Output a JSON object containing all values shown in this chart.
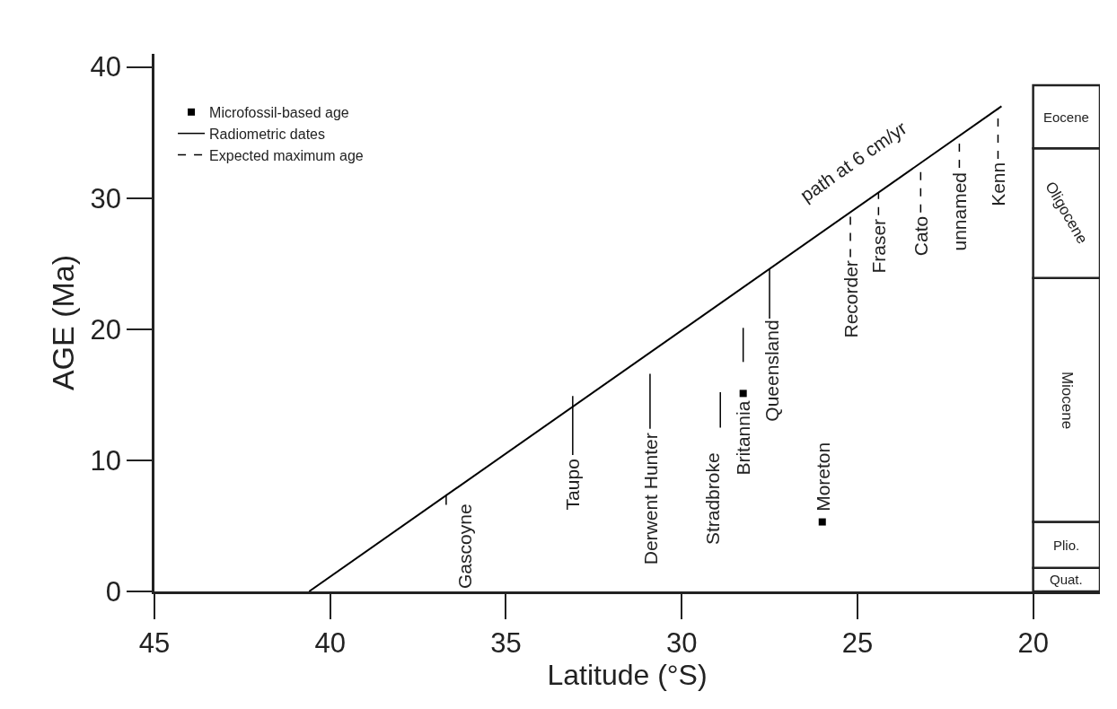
{
  "chart_data": {
    "type": "line",
    "xlabel": "Latitude (°S)",
    "ylabel": "AGE (Ma)",
    "xlim": [
      45,
      18.1
    ],
    "xticks": [
      45,
      40,
      35,
      30,
      25,
      20
    ],
    "ylim": [
      0,
      41
    ],
    "yticks": [
      0,
      10,
      20,
      30,
      40
    ],
    "legend": "top left",
    "stacked": true,
    "series": [
      {
        "type": "scatter",
        "name": "Microfossil-based age",
        "color": "#000000",
        "marker": "square",
        "x": [
          28.25,
          26.0
        ],
        "values": [
          15.1,
          5.3
        ]
      },
      {
        "name": "Radiometric dates",
        "color": "#000000",
        "line_style": "solid",
        "x": [
          36.7,
          36.7,
          null,
          33.1,
          33.1,
          null,
          30.9,
          30.9,
          null,
          28.9,
          28.9,
          null,
          28.25,
          28.25,
          null,
          27.5,
          27.5
        ],
        "values": [
          6.6,
          7.4,
          null,
          10.4,
          14.9,
          null,
          12.4,
          16.6,
          null,
          12.5,
          15.2,
          null,
          17.5,
          20.1,
          null,
          20.8,
          24.6
        ]
      },
      {
        "name": "Expected maximum age",
        "color": "#000000",
        "line_style": "dashed",
        "x": [
          25.2,
          25.2,
          null,
          24.4,
          24.4,
          null,
          23.2,
          23.2,
          null,
          22.1,
          22.1,
          null,
          21.0,
          21.0
        ],
        "values": [
          25.5,
          28.9,
          null,
          28.7,
          30.4,
          null,
          28.9,
          32.6,
          null,
          32.3,
          34.7,
          null,
          33.0,
          36.7
        ]
      },
      {
        "color": "#000000",
        "line_style": "solid",
        "x": [
          40.6,
          20.9
        ],
        "values": [
          0,
          37.0
        ]
      },
      {
        "type": "bar",
        "name": "Quat.",
        "x": [
          19.05
        ],
        "values": [
          1.8
        ]
      },
      {
        "type": "bar",
        "name": "Plio.",
        "x": [
          19.05
        ],
        "values": [
          3.5
        ]
      },
      {
        "type": "bar",
        "name": "Miocene",
        "x": [
          19.05
        ],
        "values": [
          18.6
        ]
      },
      {
        "type": "bar",
        "name": "Oligocene",
        "x": [
          19.05
        ],
        "values": [
          9.9
        ]
      },
      {
        "type": "bar",
        "name": "Eocene",
        "x": [
          19.05
        ],
        "values": [
          4.8
        ]
      }
    ],
    "annotations": [
      {
        "text": "path at 6 cm/yr",
        "x": 25.1,
        "y": 29.1
      },
      {
        "text": "Gascoyne",
        "x": 36.7,
        "y": 6.6
      },
      {
        "text": "Taupo",
        "x": 33.1,
        "y": 10.4
      },
      {
        "text": "Derwent Hunter",
        "x": 30.9,
        "y": 12.4
      },
      {
        "text": "Stradbroke",
        "x": 28.9,
        "y": 12.5
      },
      {
        "text": "Britannia",
        "x": 28.25,
        "y": 15.1
      },
      {
        "text": "Queensland",
        "x": 27.5,
        "y": 20.8
      },
      {
        "text": "Moreton",
        "x": 26.0,
        "y": 5.3
      },
      {
        "text": "Recorder",
        "x": 25.2,
        "y": 25.5
      },
      {
        "text": "Fraser",
        "x": 24.4,
        "y": 28.7
      },
      {
        "text": "Cato",
        "x": 23.2,
        "y": 28.9
      },
      {
        "text": "unnamed",
        "x": 22.1,
        "y": 32.3
      },
      {
        "text": "Kenn",
        "x": 21.0,
        "y": 33.0
      }
    ]
  }
}
